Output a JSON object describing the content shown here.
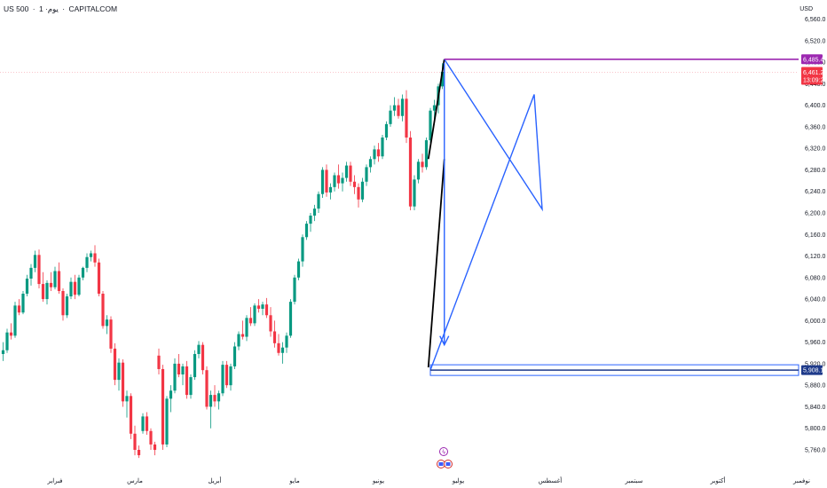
{
  "header": {
    "symbol": "US 500",
    "interval": "1 ·يوم",
    "exchange": "CAPITALCOM",
    "currency": "USD"
  },
  "colors": {
    "up": "#089981",
    "down": "#f23645",
    "trendline": "#000000",
    "pattern": "#2962ff",
    "level_top": "#9c27b0",
    "price_tag": "#f23645",
    "support_tag": "#1e3a8a"
  },
  "price_tags": {
    "top_level": "6,485.4",
    "last_price": "6,461.2",
    "countdown": "13:09:23",
    "support_level": "5,908.1"
  },
  "event_icons": {
    "flash": "ϟ",
    "flags": "2"
  },
  "chart_data": {
    "type": "candlestick",
    "title": "",
    "y_ticks": [
      "6,560.0",
      "6,520.0",
      "6,480.0",
      "6,440.0",
      "6,400.0",
      "6,360.0",
      "6,320.0",
      "6,280.0",
      "6,240.0",
      "6,200.0",
      "6,160.0",
      "6,120.0",
      "6,080.0",
      "6,040.0",
      "6,000.0",
      "5,960.0",
      "5,920.0",
      "5,880.0",
      "5,840.0",
      "5,800.0",
      "5,760.0"
    ],
    "ylim": [
      5745,
      6580
    ],
    "x_ticks": [
      {
        "label": "فبراير",
        "index": 13
      },
      {
        "label": "مارس",
        "index": 33
      },
      {
        "label": "أبريل",
        "index": 53
      },
      {
        "label": "مايو",
        "index": 73
      },
      {
        "label": "يونيو",
        "index": 94
      },
      {
        "label": "يوليو",
        "index": 114
      },
      {
        "label": "أغسطس",
        "index": 137
      },
      {
        "label": "سبتمبر",
        "index": 158
      },
      {
        "label": "أكتوبر",
        "index": 179
      },
      {
        "label": "نوفمبر",
        "index": 200
      }
    ],
    "ohlc": [
      [
        5938,
        5960,
        5925,
        5945
      ],
      [
        5945,
        5985,
        5940,
        5978
      ],
      [
        5978,
        5995,
        5965,
        5972
      ],
      [
        5972,
        6035,
        5968,
        6028
      ],
      [
        6028,
        6040,
        6010,
        6015
      ],
      [
        6015,
        6055,
        6012,
        6050
      ],
      [
        6050,
        6085,
        6045,
        6078
      ],
      [
        6078,
        6105,
        6065,
        6098
      ],
      [
        6098,
        6130,
        6090,
        6122
      ],
      [
        6122,
        6132,
        6060,
        6068
      ],
      [
        6068,
        6090,
        6035,
        6040
      ],
      [
        6040,
        6075,
        6030,
        6070
      ],
      [
        6070,
        6090,
        6055,
        6062
      ],
      [
        6062,
        6100,
        6058,
        6092
      ],
      [
        6092,
        6108,
        6050,
        6055
      ],
      [
        6055,
        6060,
        6000,
        6010
      ],
      [
        6010,
        6050,
        6005,
        6045
      ],
      [
        6045,
        6080,
        6040,
        6072
      ],
      [
        6072,
        6085,
        6040,
        6048
      ],
      [
        6048,
        6085,
        6045,
        6080
      ],
      [
        6080,
        6100,
        6075,
        6098
      ],
      [
        6098,
        6125,
        6090,
        6118
      ],
      [
        6118,
        6130,
        6110,
        6125
      ],
      [
        6125,
        6140,
        6100,
        6108
      ],
      [
        6108,
        6115,
        6045,
        6050
      ],
      [
        6050,
        6055,
        5985,
        5990
      ],
      [
        5990,
        6010,
        5975,
        6002
      ],
      [
        6002,
        6008,
        5940,
        5948
      ],
      [
        5948,
        5958,
        5880,
        5890
      ],
      [
        5890,
        5930,
        5870,
        5922
      ],
      [
        5922,
        5928,
        5840,
        5850
      ],
      [
        5850,
        5870,
        5820,
        5860
      ],
      [
        5860,
        5865,
        5780,
        5790
      ],
      [
        5790,
        5805,
        5750,
        5760
      ],
      [
        5760,
        5768,
        5745,
        5750
      ],
      [
        5795,
        5828,
        5790,
        5822
      ],
      [
        5822,
        5830,
        5788,
        5795
      ],
      [
        5795,
        5800,
        5760,
        5770
      ],
      [
        5770,
        5775,
        5750,
        5760
      ],
      [
        5935,
        5948,
        5900,
        5910
      ],
      [
        5910,
        5918,
        5760,
        5770
      ],
      [
        5770,
        5860,
        5765,
        5855
      ],
      [
        5855,
        5880,
        5830,
        5870
      ],
      [
        5870,
        5930,
        5865,
        5920
      ],
      [
        5920,
        5938,
        5895,
        5900
      ],
      [
        5900,
        5920,
        5880,
        5915
      ],
      [
        5915,
        5925,
        5855,
        5862
      ],
      [
        5862,
        5900,
        5855,
        5895
      ],
      [
        5895,
        5945,
        5890,
        5938
      ],
      [
        5938,
        5962,
        5930,
        5955
      ],
      [
        5955,
        5960,
        5900,
        5908
      ],
      [
        5908,
        5915,
        5835,
        5840
      ],
      [
        5840,
        5870,
        5800,
        5862
      ],
      [
        5862,
        5880,
        5840,
        5850
      ],
      [
        5850,
        5870,
        5835,
        5865
      ],
      [
        5865,
        5925,
        5860,
        5918
      ],
      [
        5918,
        5925,
        5875,
        5880
      ],
      [
        5880,
        5920,
        5870,
        5915
      ],
      [
        5915,
        5960,
        5910,
        5952
      ],
      [
        5952,
        5980,
        5945,
        5975
      ],
      [
        5975,
        6000,
        5965,
        5970
      ],
      [
        5970,
        6010,
        5962,
        6005
      ],
      [
        6005,
        6025,
        5990,
        5995
      ],
      [
        5995,
        6032,
        5990,
        6028
      ],
      [
        6028,
        6040,
        6015,
        6022
      ],
      [
        6022,
        6035,
        6010,
        6030
      ],
      [
        6030,
        6042,
        6005,
        6010
      ],
      [
        6010,
        6025,
        5970,
        5980
      ],
      [
        5980,
        6000,
        5950,
        5958
      ],
      [
        5958,
        5975,
        5935,
        5940
      ],
      [
        5940,
        5960,
        5920,
        5950
      ],
      [
        5950,
        5978,
        5940,
        5972
      ],
      [
        5972,
        6040,
        5968,
        6035
      ],
      [
        6035,
        6085,
        6030,
        6080
      ],
      [
        6080,
        6115,
        6075,
        6110
      ],
      [
        6110,
        6160,
        6100,
        6155
      ],
      [
        6155,
        6185,
        6150,
        6180
      ],
      [
        6180,
        6200,
        6165,
        6195
      ],
      [
        6195,
        6215,
        6185,
        6208
      ],
      [
        6208,
        6240,
        6200,
        6235
      ],
      [
        6235,
        6285,
        6228,
        6280
      ],
      [
        6280,
        6290,
        6230,
        6238
      ],
      [
        6238,
        6255,
        6225,
        6248
      ],
      [
        6248,
        6275,
        6240,
        6270
      ],
      [
        6270,
        6290,
        6245,
        6255
      ],
      [
        6255,
        6275,
        6240,
        6265
      ],
      [
        6265,
        6295,
        6258,
        6288
      ],
      [
        6288,
        6295,
        6250,
        6258
      ],
      [
        6258,
        6270,
        6235,
        6248
      ],
      [
        6248,
        6255,
        6210,
        6225
      ],
      [
        6225,
        6265,
        6220,
        6258
      ],
      [
        6258,
        6290,
        6250,
        6285
      ],
      [
        6285,
        6305,
        6275,
        6300
      ],
      [
        6300,
        6325,
        6290,
        6318
      ],
      [
        6318,
        6330,
        6295,
        6305
      ],
      [
        6305,
        6345,
        6300,
        6340
      ],
      [
        6340,
        6370,
        6335,
        6365
      ],
      [
        6365,
        6400,
        6360,
        6390
      ],
      [
        6390,
        6415,
        6380,
        6400
      ],
      [
        6400,
        6412,
        6375,
        6380
      ],
      [
        6380,
        6420,
        6370,
        6412
      ],
      [
        6412,
        6428,
        6330,
        6340
      ],
      [
        6340,
        6352,
        6205,
        6212
      ],
      [
        6212,
        6270,
        6205,
        6262
      ],
      [
        6262,
        6300,
        6255,
        6295
      ],
      [
        6295,
        6310,
        6275,
        6285
      ],
      [
        6285,
        6340,
        6280,
        6335
      ],
      [
        6335,
        6395,
        6330,
        6390
      ],
      [
        6390,
        6410,
        6370,
        6400
      ],
      [
        6400,
        6440,
        6385,
        6435
      ],
      [
        6435,
        6478,
        6430,
        6462
      ]
    ],
    "annotations": {
      "top_level": 6485.4,
      "support_level": 5908.1
    }
  }
}
